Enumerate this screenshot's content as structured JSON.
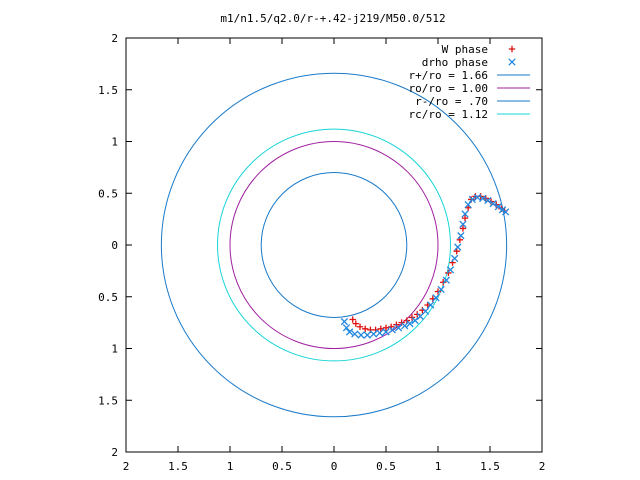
{
  "chart_data": {
    "type": "scatter",
    "title": "m1/n1.5/q2.0/r-+.42-j219/M50.0/512",
    "xlabel": "",
    "ylabel": "",
    "xlim": [
      -2,
      2
    ],
    "ylim": [
      -2,
      2
    ],
    "grid": false,
    "aspect": "equal",
    "legend_position": "top-right",
    "x_tick_labels": [
      "2",
      "1.5",
      "1",
      "0.5",
      "0",
      "0.5",
      "1",
      "1.5",
      "2"
    ],
    "y_tick_labels": [
      "2",
      "1.5",
      "1",
      "0.5",
      "0",
      "0.5",
      "1",
      "1.5",
      "2"
    ],
    "circles": [
      {
        "name": "r+/ro = 1.66",
        "radius": 1.66,
        "color": "#1a7ac9"
      },
      {
        "name": "ro/ro = 1.00",
        "radius": 1.0,
        "color": "#a020a0"
      },
      {
        "name": "r-/ro = .70",
        "radius": 0.7,
        "color": "#1a7ac9"
      },
      {
        "name": "rc/ro = 1.12",
        "radius": 1.12,
        "color": "#18d4d8"
      }
    ],
    "series": [
      {
        "name": "W phase",
        "marker": "+",
        "color": "#e01010",
        "points": [
          [
            0.18,
            -0.72
          ],
          [
            0.21,
            -0.76
          ],
          [
            0.25,
            -0.79
          ],
          [
            0.3,
            -0.81
          ],
          [
            0.35,
            -0.82
          ],
          [
            0.4,
            -0.82
          ],
          [
            0.45,
            -0.81
          ],
          [
            0.5,
            -0.8
          ],
          [
            0.55,
            -0.79
          ],
          [
            0.6,
            -0.77
          ],
          [
            0.65,
            -0.75
          ],
          [
            0.7,
            -0.73
          ],
          [
            0.75,
            -0.7
          ],
          [
            0.8,
            -0.67
          ],
          [
            0.85,
            -0.63
          ],
          [
            0.9,
            -0.58
          ],
          [
            0.95,
            -0.52
          ],
          [
            1.0,
            -0.45
          ],
          [
            1.05,
            -0.36
          ],
          [
            1.1,
            -0.27
          ],
          [
            1.14,
            -0.17
          ],
          [
            1.18,
            -0.06
          ],
          [
            1.21,
            0.05
          ],
          [
            1.24,
            0.16
          ],
          [
            1.26,
            0.26
          ],
          [
            1.29,
            0.36
          ],
          [
            1.32,
            0.44
          ],
          [
            1.36,
            0.47
          ],
          [
            1.41,
            0.47
          ],
          [
            1.46,
            0.45
          ],
          [
            1.51,
            0.42
          ],
          [
            1.56,
            0.39
          ],
          [
            1.61,
            0.35
          ],
          [
            1.64,
            0.33
          ]
        ]
      },
      {
        "name": "drho phase",
        "marker": "x",
        "color": "#2288e0",
        "points": [
          [
            0.1,
            -0.74
          ],
          [
            0.12,
            -0.8
          ],
          [
            0.15,
            -0.84
          ],
          [
            0.2,
            -0.86
          ],
          [
            0.26,
            -0.87
          ],
          [
            0.32,
            -0.87
          ],
          [
            0.38,
            -0.86
          ],
          [
            0.44,
            -0.85
          ],
          [
            0.5,
            -0.84
          ],
          [
            0.56,
            -0.82
          ],
          [
            0.62,
            -0.8
          ],
          [
            0.68,
            -0.78
          ],
          [
            0.73,
            -0.76
          ],
          [
            0.78,
            -0.73
          ],
          [
            0.83,
            -0.69
          ],
          [
            0.88,
            -0.64
          ],
          [
            0.93,
            -0.58
          ],
          [
            0.98,
            -0.51
          ],
          [
            1.03,
            -0.43
          ],
          [
            1.08,
            -0.34
          ],
          [
            1.12,
            -0.24
          ],
          [
            1.16,
            -0.13
          ],
          [
            1.19,
            -0.02
          ],
          [
            1.22,
            0.09
          ],
          [
            1.24,
            0.2
          ],
          [
            1.26,
            0.3
          ],
          [
            1.29,
            0.39
          ],
          [
            1.33,
            0.44
          ],
          [
            1.38,
            0.46
          ],
          [
            1.43,
            0.45
          ],
          [
            1.48,
            0.43
          ],
          [
            1.53,
            0.4
          ],
          [
            1.58,
            0.37
          ],
          [
            1.62,
            0.34
          ],
          [
            1.65,
            0.32
          ]
        ]
      }
    ]
  }
}
